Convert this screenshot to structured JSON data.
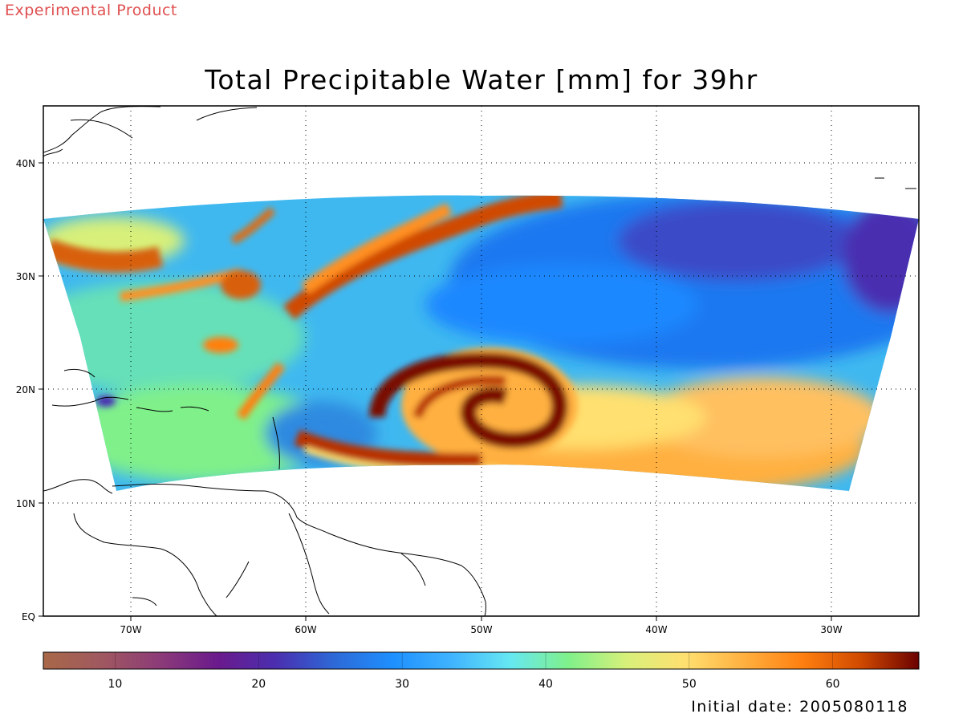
{
  "banner": "Experimental Product",
  "banner_color": "#e05050",
  "title": "Total Precipitable Water [mm] for 39hr",
  "axes": {
    "lon_range": [
      -75,
      -25
    ],
    "lat_range": [
      0,
      45
    ],
    "x_ticks": [
      "70W",
      "60W",
      "50W",
      "40W",
      "30W"
    ],
    "y_ticks": [
      "EQ",
      "10N",
      "20N",
      "30N",
      "40N"
    ],
    "grid": "dotted"
  },
  "storm_center": {
    "lon": -49.7,
    "lat": 19
  },
  "colorbar": {
    "range": [
      5,
      66
    ],
    "ticks": [
      "10",
      "20",
      "30",
      "40",
      "50",
      "60"
    ],
    "colors": [
      "#a86848",
      "#a05860",
      "#8c3b78",
      "#6a1a8c",
      "#4a2fb0",
      "#2d6ad8",
      "#1e90ff",
      "#40b4ff",
      "#66e8f2",
      "#80f08a",
      "#d8f07a",
      "#ffe070",
      "#ffb040",
      "#ff8010",
      "#d04a00",
      "#6a0000"
    ]
  },
  "footer": "Initial date: 2005080118"
}
